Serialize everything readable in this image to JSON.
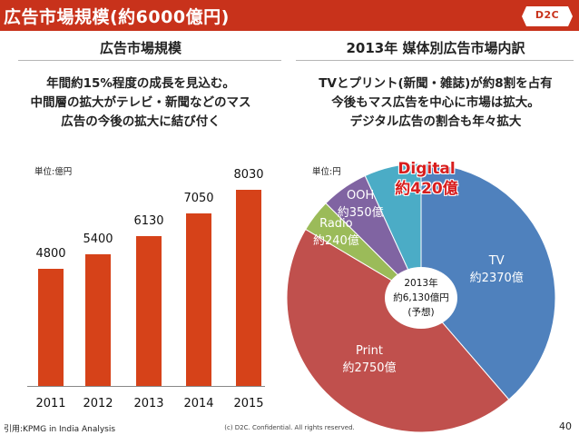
{
  "header": {
    "title": "広告市場規模(約6000億円)",
    "logo": "D2C"
  },
  "left": {
    "heading": "広告市場規模",
    "desc": [
      "年間約15%程度の成長を見込む。",
      "中間層の拡大がテレビ・新聞などのマス",
      "広告の今後の拡大に結び付く"
    ],
    "unit": "単位:億円"
  },
  "right": {
    "heading": "2013年 媒体別広告市場内訳",
    "desc": [
      "TVとプリント(新聞・雑誌)が約8割を占有",
      "今後もマス広告を中心に市場は拡大。",
      "デジタル広告の割合も年々拡大"
    ],
    "unit": "単位:円",
    "center": [
      "2013年",
      "約6,130億円",
      "(予想)"
    ]
  },
  "chart_data": [
    {
      "type": "bar",
      "title": "広告市場規模",
      "categories": [
        "2011",
        "2012",
        "2013",
        "2014",
        "2015"
      ],
      "values": [
        4800,
        5400,
        6130,
        7050,
        8030
      ],
      "value_labels": [
        "4800",
        "5400",
        "6130",
        "7050",
        "8030"
      ],
      "ylabel": "単位:億円",
      "ylim": [
        0,
        8500
      ],
      "color": "#d64219"
    },
    {
      "type": "pie",
      "title": "2013年 媒体別広告市場内訳",
      "slices": [
        {
          "name": "TV",
          "value": 2370,
          "label": "約2370億",
          "color": "#4f81bd"
        },
        {
          "name": "Print",
          "value": 2750,
          "label": "約2750億",
          "color": "#c0504d"
        },
        {
          "name": "Radio",
          "value": 240,
          "label": "約240億",
          "color": "#9bbb59"
        },
        {
          "name": "OOH",
          "value": 350,
          "label": "約350億",
          "color": "#8064a2"
        },
        {
          "name": "Digital",
          "value": 420,
          "label": "約420億",
          "color": "#4bacc6"
        }
      ]
    }
  ],
  "footer": {
    "source": "引用:KPMG in India Analysis",
    "copyright": "(c) D2C. Confidential. All rights reserved.",
    "page": "40"
  }
}
